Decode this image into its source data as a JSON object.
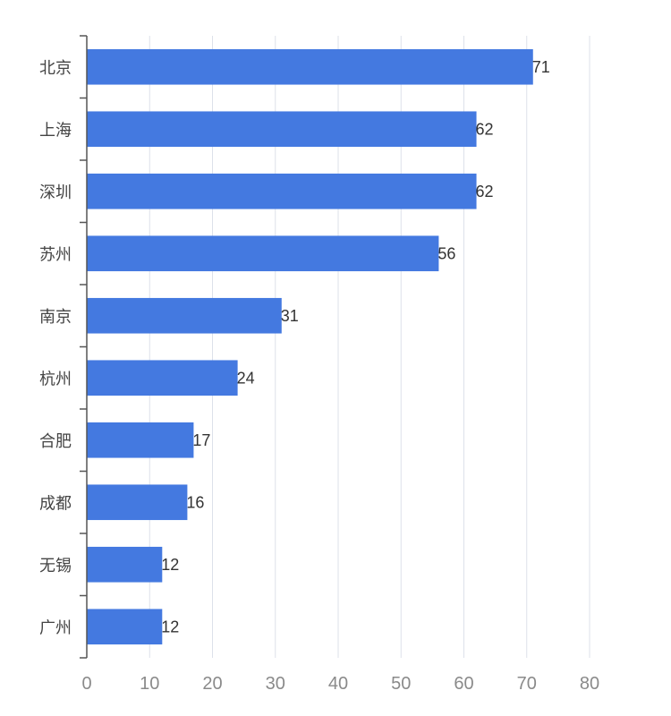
{
  "chart_data": {
    "type": "bar",
    "orientation": "horizontal",
    "categories": [
      "北京",
      "上海",
      "深圳",
      "苏州",
      "南京",
      "杭州",
      "合肥",
      "成都",
      "无锡",
      "广州"
    ],
    "values": [
      71,
      62,
      62,
      56,
      31,
      24,
      17,
      16,
      12,
      12
    ],
    "xlim": [
      0,
      80
    ],
    "x_ticks": [
      0,
      10,
      20,
      30,
      40,
      50,
      60,
      70,
      80
    ],
    "grid": true,
    "legend": "none",
    "data_labels": true,
    "colors": {
      "bar": "#4479e0"
    }
  }
}
